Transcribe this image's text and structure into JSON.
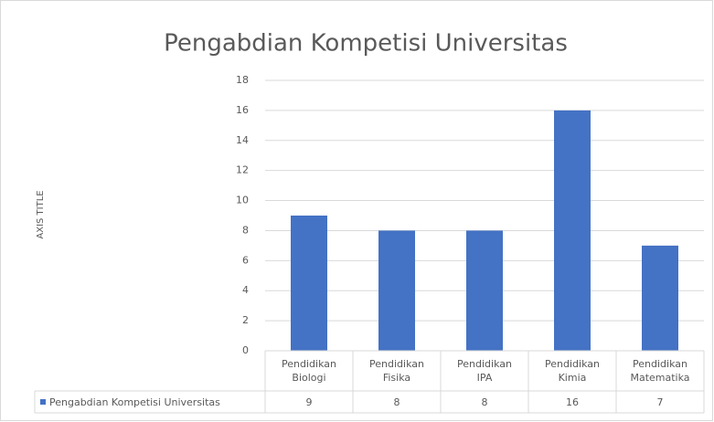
{
  "chart_data": {
    "type": "bar",
    "title": "Pengabdian Kompetisi Universitas",
    "y_axis_title": "AXIS TITLE",
    "categories": [
      "Pendidikan Biologi",
      "Pendidikan Fisika",
      "Pendidikan IPA",
      "Pendidikan Kimia",
      "Pendidikan Matematika"
    ],
    "series": [
      {
        "name": "Pengabdian Kompetisi Universitas",
        "color": "#4472c4",
        "values": [
          9,
          8,
          8,
          16,
          7
        ]
      }
    ],
    "ylim": [
      0,
      18
    ],
    "yticks": [
      0,
      2,
      4,
      6,
      8,
      10,
      12,
      14,
      16,
      18
    ],
    "grid": true,
    "data_table": true
  }
}
